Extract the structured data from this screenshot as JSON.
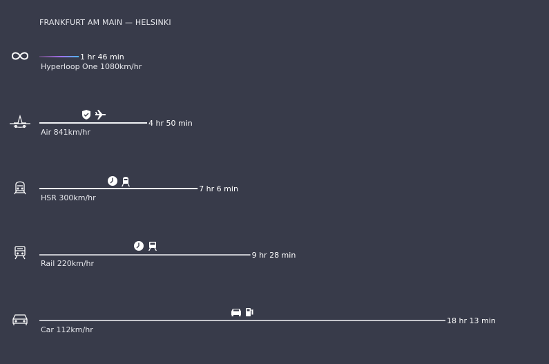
{
  "title": "FRANKFURT AM MAIN — HELSINKI",
  "chart_data": {
    "type": "bar",
    "orientation": "horizontal",
    "title": "FRANKFURT AM MAIN — HELSINKI",
    "xlabel": "",
    "ylabel": "",
    "grid": true,
    "xlim": [
      0,
      1200
    ],
    "categories": [
      "Hyperloop One 1080km/hr",
      "Air 841km/hr",
      "HSR 300km/hr",
      "Rail 220km/hr",
      "Car 112km/hr"
    ],
    "values": [
      106,
      290,
      426,
      568,
      1093
    ],
    "time_labels": [
      "1 hr 46 min",
      "4 hr 50 min",
      "7 hr 6 min",
      "9 hr 28 min",
      "18 hr 13 min"
    ],
    "mode_icons": [
      "infinity-icon",
      "airplane-icon",
      "high-speed-train-icon",
      "train-icon",
      "car-icon"
    ],
    "badge_icons": [
      [],
      [
        "shield-icon",
        "airplane-small-icon"
      ],
      [
        "clock-icon",
        "train-small-icon"
      ],
      [
        "clock-icon",
        "train-small-icon"
      ],
      [
        "car-small-icon",
        "fuel-pump-icon"
      ]
    ],
    "colors": {
      "background": "#383b4a",
      "grid": "#545868",
      "bar": "#f2f3f6",
      "hyperloop_gradient": [
        "#c070e0",
        "#4fb6f0"
      ]
    }
  }
}
